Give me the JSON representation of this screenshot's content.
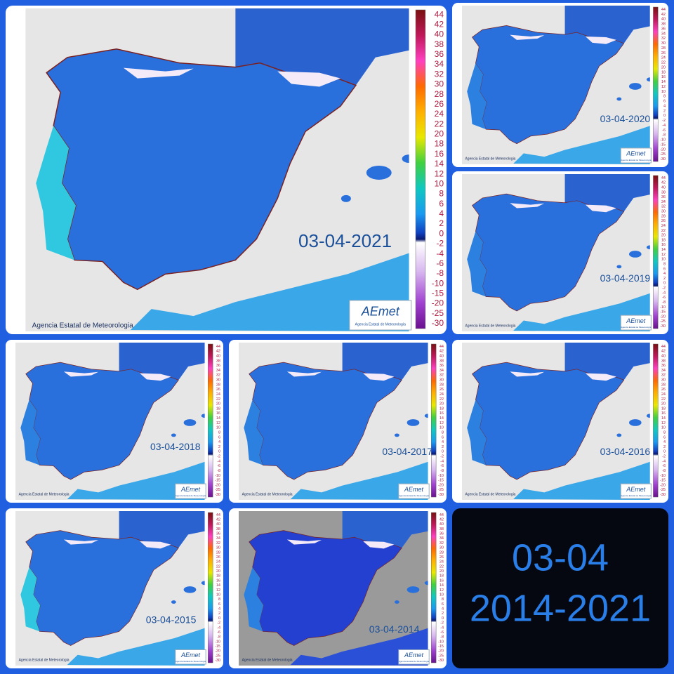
{
  "panels": [
    {
      "date": "03-04-2021"
    },
    {
      "date": "03-04-2020"
    },
    {
      "date": "03-04-2019"
    },
    {
      "date": "03-04-2018"
    },
    {
      "date": "03-04-2017"
    },
    {
      "date": "03-04-2016"
    },
    {
      "date": "03-04-2015"
    },
    {
      "date": "03-04-2014"
    }
  ],
  "legend": {
    "labels": [
      "44",
      "42",
      "40",
      "38",
      "36",
      "34",
      "32",
      "30",
      "28",
      "26",
      "24",
      "22",
      "20",
      "18",
      "16",
      "14",
      "12",
      "10",
      "8",
      "6",
      "4",
      "2",
      "0",
      "-2",
      "-4",
      "-6",
      "-8",
      "-10",
      "-15",
      "-20",
      "-25",
      "-30"
    ]
  },
  "credit": "Agencia Estatal de Meteorologia",
  "logo": {
    "name": "AEmet",
    "subtitle": "Agencia Estatal de Meteorología"
  },
  "summary": {
    "line1": "03-04",
    "line2": "2014-2021"
  }
}
